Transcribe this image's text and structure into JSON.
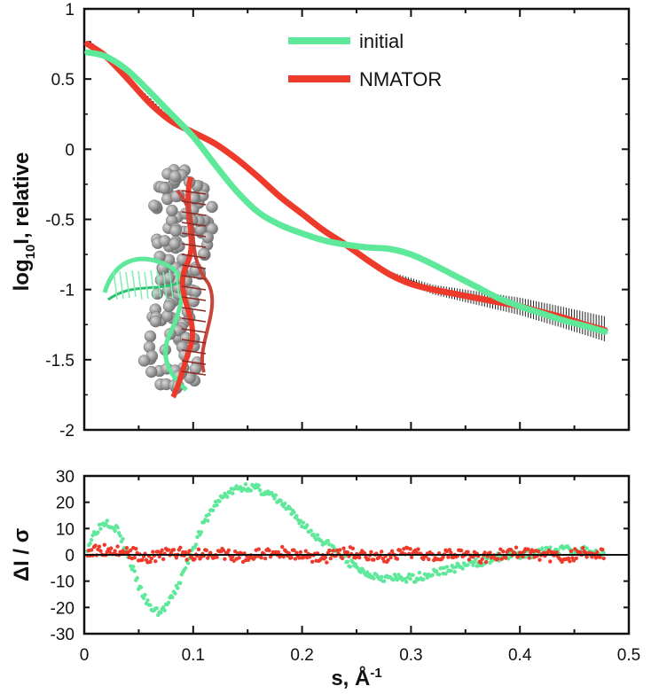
{
  "chart_data": [
    {
      "type": "line",
      "ylabel_main": "log",
      "ylabel_sub": "10",
      "ylabel_rest": "I, relative",
      "xlim": [
        0,
        0.5
      ],
      "ylim": [
        -2,
        1
      ],
      "x_ticks": [
        "0",
        "0.1",
        "0.2",
        "0.3",
        "0.4",
        "0.5"
      ],
      "y_ticks": [
        "1",
        "0.5",
        "0",
        "-0.5",
        "-1",
        "-1.5",
        "-2"
      ],
      "y_tick_values": [
        1,
        0.5,
        0,
        -0.5,
        -1,
        -1.5,
        -2
      ],
      "x_tick_values": [
        0,
        0.1,
        0.2,
        0.3,
        0.4,
        0.5
      ],
      "legend_position": "top-center",
      "series": [
        {
          "name": "initial",
          "color": "#5ee89a",
          "x": [
            0.003,
            0.02,
            0.04,
            0.06,
            0.08,
            0.1,
            0.12,
            0.14,
            0.16,
            0.18,
            0.2,
            0.22,
            0.24,
            0.26,
            0.28,
            0.3,
            0.32,
            0.34,
            0.36,
            0.38,
            0.4,
            0.42,
            0.44,
            0.46,
            0.478
          ],
          "y": [
            0.69,
            0.66,
            0.56,
            0.41,
            0.25,
            0.09,
            -0.11,
            -0.3,
            -0.45,
            -0.54,
            -0.6,
            -0.65,
            -0.68,
            -0.7,
            -0.71,
            -0.75,
            -0.82,
            -0.9,
            -0.98,
            -1.06,
            -1.12,
            -1.17,
            -1.22,
            -1.26,
            -1.3
          ]
        },
        {
          "name": "NMATOR",
          "color": "#ee3a2a",
          "x": [
            0.003,
            0.02,
            0.04,
            0.06,
            0.08,
            0.1,
            0.12,
            0.14,
            0.16,
            0.18,
            0.2,
            0.22,
            0.24,
            0.26,
            0.28,
            0.3,
            0.32,
            0.34,
            0.36,
            0.38,
            0.4,
            0.42,
            0.44,
            0.46,
            0.478
          ],
          "y": [
            0.75,
            0.66,
            0.5,
            0.33,
            0.2,
            0.12,
            0.04,
            -0.07,
            -0.2,
            -0.34,
            -0.46,
            -0.58,
            -0.68,
            -0.79,
            -0.89,
            -0.96,
            -1.0,
            -1.03,
            -1.06,
            -1.09,
            -1.12,
            -1.16,
            -1.2,
            -1.25,
            -1.29
          ]
        }
      ],
      "experimental_points": {
        "color": "#222222",
        "x": [
          0.005,
          0.04,
          0.08,
          0.12,
          0.16,
          0.2,
          0.24,
          0.28,
          0.32,
          0.36,
          0.4,
          0.44,
          0.478
        ],
        "y": [
          0.76,
          0.5,
          0.2,
          0.04,
          -0.2,
          -0.46,
          -0.68,
          -0.89,
          -1.0,
          -1.06,
          -1.12,
          -1.2,
          -1.28
        ]
      },
      "inset_image": "rna-structure-model"
    },
    {
      "type": "scatter",
      "ylabel": "ΔI / σ",
      "xlabel_main": "s, Å",
      "xlabel_sup": "-1",
      "xlim": [
        0,
        0.5
      ],
      "ylim": [
        -30,
        30
      ],
      "x_ticks": [
        "0",
        "0.1",
        "0.2",
        "0.3",
        "0.4",
        "0.5"
      ],
      "y_ticks": [
        "30",
        "20",
        "10",
        "0",
        "-10",
        "-20",
        "-30"
      ],
      "y_tick_values": [
        30,
        20,
        10,
        0,
        -10,
        -20,
        -30
      ],
      "x_tick_values": [
        0,
        0.1,
        0.2,
        0.3,
        0.4,
        0.5
      ],
      "zero_line": true,
      "series": [
        {
          "name": "initial",
          "color": "#5ee89a",
          "x": [
            0.003,
            0.01,
            0.02,
            0.03,
            0.04,
            0.05,
            0.06,
            0.07,
            0.08,
            0.09,
            0.1,
            0.11,
            0.12,
            0.13,
            0.14,
            0.15,
            0.16,
            0.17,
            0.18,
            0.19,
            0.2,
            0.21,
            0.22,
            0.23,
            0.24,
            0.25,
            0.26,
            0.27,
            0.28,
            0.29,
            0.3,
            0.31,
            0.32,
            0.33,
            0.34,
            0.35,
            0.36,
            0.37,
            0.38,
            0.39,
            0.4,
            0.41,
            0.42,
            0.43,
            0.44,
            0.45,
            0.46,
            0.47,
            0.478
          ],
          "y": [
            3,
            9,
            13,
            10,
            0,
            -12,
            -20,
            -22,
            -17,
            -8,
            3,
            12,
            19,
            23,
            25,
            26,
            25,
            23,
            20,
            16,
            12,
            8,
            5,
            2,
            -2,
            -5,
            -7,
            -8,
            -9,
            -9,
            -9,
            -8,
            -7,
            -6,
            -5,
            -4,
            -3,
            -2,
            -1,
            -0.5,
            0,
            0.5,
            1,
            1.5,
            2,
            2,
            1.5,
            1,
            0.5
          ]
        },
        {
          "name": "NMATOR",
          "color": "#ee3a2a",
          "x": [
            0.003,
            0.02,
            0.04,
            0.06,
            0.08,
            0.1,
            0.12,
            0.14,
            0.16,
            0.18,
            0.2,
            0.22,
            0.24,
            0.26,
            0.28,
            0.3,
            0.32,
            0.34,
            0.36,
            0.38,
            0.4,
            0.42,
            0.44,
            0.46,
            0.478
          ],
          "y": [
            1,
            2,
            1,
            -1,
            1,
            0,
            1,
            -1,
            0,
            1,
            0,
            -1,
            1,
            0,
            -1,
            1,
            0,
            1,
            -1,
            0,
            1,
            0,
            -1,
            1,
            0
          ]
        }
      ]
    }
  ]
}
